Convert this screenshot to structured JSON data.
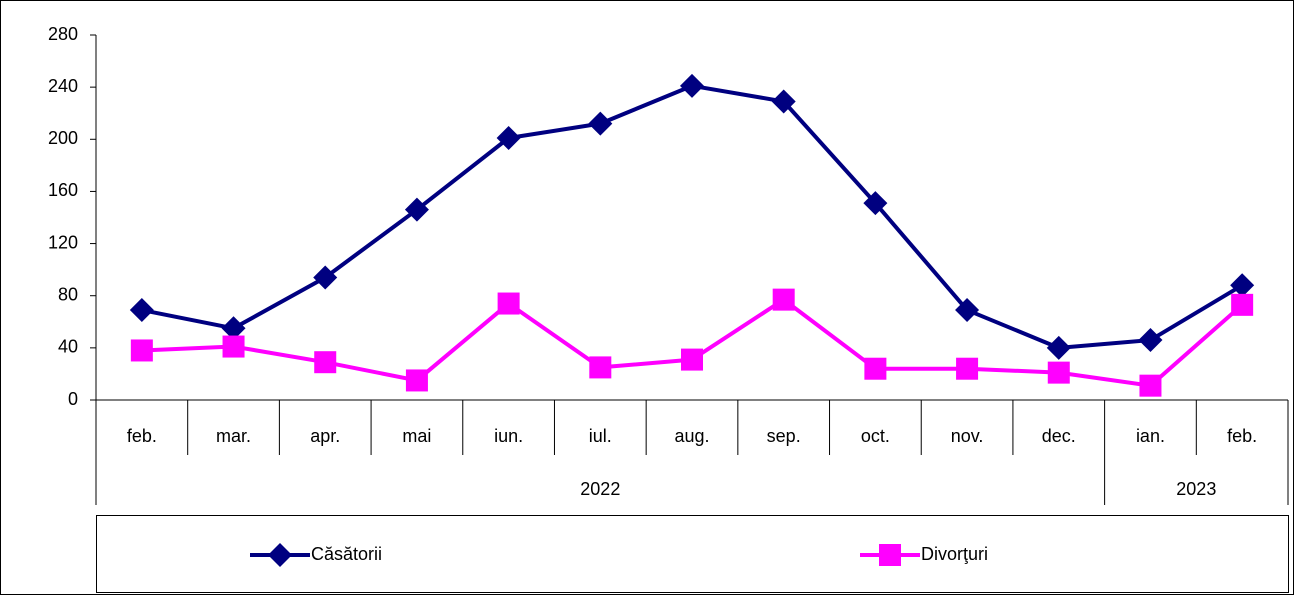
{
  "chart_data": {
    "type": "line",
    "categories": [
      "feb.",
      "mar.",
      "apr.",
      "mai",
      "iun.",
      "iul.",
      "aug.",
      "sep.",
      "oct.",
      "nov.",
      "dec.",
      "ian.",
      "feb."
    ],
    "groups": [
      {
        "label": "2022",
        "count": 11
      },
      {
        "label": "2023",
        "count": 2
      }
    ],
    "series": [
      {
        "name": "Căsătorii",
        "color": "#000080",
        "marker": "diamond",
        "values": [
          69,
          55,
          94,
          146,
          201,
          212,
          241,
          229,
          151,
          69,
          40,
          46,
          88
        ]
      },
      {
        "name": "Divorţuri",
        "color": "#ff00ff",
        "marker": "square",
        "values": [
          38,
          41,
          29,
          15,
          74,
          25,
          31,
          77,
          24,
          24,
          21,
          11,
          73
        ]
      }
    ],
    "ylim": [
      0,
      280
    ],
    "yticks": [
      0,
      40,
      80,
      120,
      160,
      200,
      240,
      280
    ],
    "grid": false,
    "legend": "bottom"
  }
}
